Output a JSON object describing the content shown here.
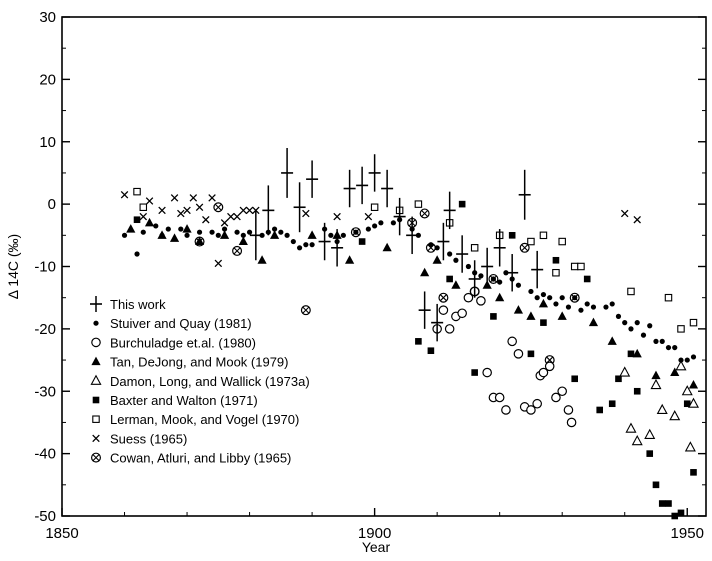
{
  "chart_data": {
    "type": "scatter",
    "xlabel": "Year",
    "ylabel": "Δ 14C (‰)",
    "xlim": [
      1850,
      1953
    ],
    "ylim": [
      -50,
      30
    ],
    "xticks": [
      1850,
      1900,
      1950
    ],
    "xtick_labels": [
      "1850",
      "1900",
      "1950"
    ],
    "yticks": [
      -50,
      -40,
      -30,
      -20,
      -10,
      0,
      10,
      20,
      30
    ],
    "ytick_labels": [
      "-50",
      "-40",
      "-30",
      "-20",
      "-10",
      "0",
      "10",
      "20",
      "30"
    ],
    "grid": false,
    "legend_position": "bottom-left",
    "series": [
      {
        "name": "This work",
        "marker": "cross-errorbar",
        "points": [
          {
            "x": 1881,
            "y": -5,
            "err": 4
          },
          {
            "x": 1883,
            "y": -1,
            "err": 4
          },
          {
            "x": 1886,
            "y": 5,
            "err": 4
          },
          {
            "x": 1888,
            "y": -0.5,
            "err": 4
          },
          {
            "x": 1890,
            "y": 4,
            "err": 3
          },
          {
            "x": 1892,
            "y": -6,
            "err": 3
          },
          {
            "x": 1894,
            "y": -7,
            "err": 3
          },
          {
            "x": 1896,
            "y": 2.5,
            "err": 3
          },
          {
            "x": 1898,
            "y": 3,
            "err": 3
          },
          {
            "x": 1900,
            "y": 5,
            "err": 3
          },
          {
            "x": 1902,
            "y": 2.5,
            "err": 3
          },
          {
            "x": 1904,
            "y": -2,
            "err": 3
          },
          {
            "x": 1906,
            "y": -5,
            "err": 3
          },
          {
            "x": 1908,
            "y": -17,
            "err": 3
          },
          {
            "x": 1910,
            "y": -19,
            "err": 3
          },
          {
            "x": 1911,
            "y": -6,
            "err": 3
          },
          {
            "x": 1912,
            "y": -1,
            "err": 3
          },
          {
            "x": 1914,
            "y": -8,
            "err": 3
          },
          {
            "x": 1916,
            "y": -12,
            "err": 3
          },
          {
            "x": 1918,
            "y": -10,
            "err": 3
          },
          {
            "x": 1920,
            "y": -7,
            "err": 3
          },
          {
            "x": 1922,
            "y": -11,
            "err": 3
          },
          {
            "x": 1924,
            "y": 1.5,
            "err": 4
          },
          {
            "x": 1926,
            "y": -10.5,
            "err": 3
          }
        ]
      },
      {
        "name": "Stuiver and Quay (1981)",
        "marker": "filled-dot",
        "points": [
          {
            "x": 1860,
            "y": -5
          },
          {
            "x": 1862,
            "y": -8
          },
          {
            "x": 1863,
            "y": -4.5
          },
          {
            "x": 1865,
            "y": -3.5
          },
          {
            "x": 1866,
            "y": -5
          },
          {
            "x": 1867,
            "y": -4
          },
          {
            "x": 1869,
            "y": -4
          },
          {
            "x": 1870,
            "y": -5
          },
          {
            "x": 1872,
            "y": -4.5
          },
          {
            "x": 1874,
            "y": -4.5
          },
          {
            "x": 1875,
            "y": -5
          },
          {
            "x": 1876,
            "y": -4
          },
          {
            "x": 1878,
            "y": -4.5
          },
          {
            "x": 1879,
            "y": -5
          },
          {
            "x": 1880,
            "y": -4.5
          },
          {
            "x": 1882,
            "y": -5
          },
          {
            "x": 1883,
            "y": -4.5
          },
          {
            "x": 1884,
            "y": -4
          },
          {
            "x": 1885,
            "y": -4.5
          },
          {
            "x": 1886,
            "y": -5
          },
          {
            "x": 1887,
            "y": -6
          },
          {
            "x": 1888,
            "y": -7
          },
          {
            "x": 1889,
            "y": -6.5
          },
          {
            "x": 1890,
            "y": -6.5
          },
          {
            "x": 1892,
            "y": -4
          },
          {
            "x": 1893,
            "y": -5
          },
          {
            "x": 1894,
            "y": -6
          },
          {
            "x": 1895,
            "y": -5
          },
          {
            "x": 1897,
            "y": -4.5
          },
          {
            "x": 1899,
            "y": -4
          },
          {
            "x": 1900,
            "y": -3.5
          },
          {
            "x": 1901,
            "y": -3
          },
          {
            "x": 1903,
            "y": -3
          },
          {
            "x": 1904,
            "y": -2.5
          },
          {
            "x": 1906,
            "y": -4
          },
          {
            "x": 1907,
            "y": -5
          },
          {
            "x": 1909,
            "y": -6.5
          },
          {
            "x": 1910,
            "y": -7
          },
          {
            "x": 1912,
            "y": -8
          },
          {
            "x": 1913,
            "y": -9
          },
          {
            "x": 1915,
            "y": -10
          },
          {
            "x": 1916,
            "y": -11
          },
          {
            "x": 1917,
            "y": -11.5
          },
          {
            "x": 1919,
            "y": -12
          },
          {
            "x": 1920,
            "y": -12.5
          },
          {
            "x": 1921,
            "y": -11
          },
          {
            "x": 1922,
            "y": -12
          },
          {
            "x": 1923,
            "y": -13
          },
          {
            "x": 1925,
            "y": -14
          },
          {
            "x": 1926,
            "y": -15
          },
          {
            "x": 1927,
            "y": -14.5
          },
          {
            "x": 1928,
            "y": -15
          },
          {
            "x": 1929,
            "y": -16
          },
          {
            "x": 1930,
            "y": -15
          },
          {
            "x": 1931,
            "y": -16.5
          },
          {
            "x": 1932,
            "y": -15
          },
          {
            "x": 1933,
            "y": -17
          },
          {
            "x": 1934,
            "y": -16
          },
          {
            "x": 1935,
            "y": -16.5
          },
          {
            "x": 1937,
            "y": -16.5
          },
          {
            "x": 1938,
            "y": -16
          },
          {
            "x": 1939,
            "y": -18
          },
          {
            "x": 1940,
            "y": -19
          },
          {
            "x": 1941,
            "y": -20
          },
          {
            "x": 1942,
            "y": -19
          },
          {
            "x": 1943,
            "y": -21
          },
          {
            "x": 1944,
            "y": -19.5
          },
          {
            "x": 1945,
            "y": -22
          },
          {
            "x": 1946,
            "y": -22
          },
          {
            "x": 1947,
            "y": -23
          },
          {
            "x": 1948,
            "y": -23
          },
          {
            "x": 1949,
            "y": -25
          },
          {
            "x": 1950,
            "y": -25
          },
          {
            "x": 1951,
            "y": -24.5
          }
        ]
      },
      {
        "name": "Burchuladge et.al. (1980)",
        "marker": "open-circle",
        "points": [
          {
            "x": 1910,
            "y": -20
          },
          {
            "x": 1911,
            "y": -17
          },
          {
            "x": 1912,
            "y": -20
          },
          {
            "x": 1913,
            "y": -18
          },
          {
            "x": 1914,
            "y": -17.5
          },
          {
            "x": 1915,
            "y": -15
          },
          {
            "x": 1916,
            "y": -14
          },
          {
            "x": 1917,
            "y": -15.5
          },
          {
            "x": 1918,
            "y": -27
          },
          {
            "x": 1919,
            "y": -31
          },
          {
            "x": 1920,
            "y": -31
          },
          {
            "x": 1921,
            "y": -33
          },
          {
            "x": 1922,
            "y": -22
          },
          {
            "x": 1923,
            "y": -24
          },
          {
            "x": 1924,
            "y": -32.5
          },
          {
            "x": 1925,
            "y": -33
          },
          {
            "x": 1926,
            "y": -32
          },
          {
            "x": 1926.5,
            "y": -27.5
          },
          {
            "x": 1927,
            "y": -27
          },
          {
            "x": 1928,
            "y": -26
          },
          {
            "x": 1929,
            "y": -31
          },
          {
            "x": 1930,
            "y": -30
          },
          {
            "x": 1931,
            "y": -33
          },
          {
            "x": 1931.5,
            "y": -35
          }
        ]
      },
      {
        "name": "Tan, DeJong, and Mook (1979)",
        "marker": "filled-triangle",
        "points": [
          {
            "x": 1861,
            "y": -4
          },
          {
            "x": 1864,
            "y": -3
          },
          {
            "x": 1866,
            "y": -5
          },
          {
            "x": 1868,
            "y": -5.5
          },
          {
            "x": 1870,
            "y": -4
          },
          {
            "x": 1872,
            "y": -6
          },
          {
            "x": 1876,
            "y": -5
          },
          {
            "x": 1879,
            "y": -6
          },
          {
            "x": 1882,
            "y": -9
          },
          {
            "x": 1884,
            "y": -5
          },
          {
            "x": 1890,
            "y": -5
          },
          {
            "x": 1894,
            "y": -5
          },
          {
            "x": 1896,
            "y": -9
          },
          {
            "x": 1902,
            "y": -7
          },
          {
            "x": 1908,
            "y": -11
          },
          {
            "x": 1910,
            "y": -9
          },
          {
            "x": 1913,
            "y": -13
          },
          {
            "x": 1918,
            "y": -13
          },
          {
            "x": 1920,
            "y": -15
          },
          {
            "x": 1923,
            "y": -17
          },
          {
            "x": 1925,
            "y": -18
          },
          {
            "x": 1927,
            "y": -16
          },
          {
            "x": 1930,
            "y": -18
          },
          {
            "x": 1935,
            "y": -19
          },
          {
            "x": 1938,
            "y": -22
          },
          {
            "x": 1942,
            "y": -24
          },
          {
            "x": 1945,
            "y": -27.5
          },
          {
            "x": 1948,
            "y": -27
          },
          {
            "x": 1951,
            "y": -29
          }
        ]
      },
      {
        "name": "Damon, Long, and Wallick (1973a)",
        "marker": "open-triangle",
        "points": [
          {
            "x": 1940,
            "y": -27
          },
          {
            "x": 1941,
            "y": -36
          },
          {
            "x": 1942,
            "y": -38
          },
          {
            "x": 1944,
            "y": -37
          },
          {
            "x": 1945,
            "y": -29
          },
          {
            "x": 1946,
            "y": -33
          },
          {
            "x": 1948,
            "y": -34
          },
          {
            "x": 1949,
            "y": -26
          },
          {
            "x": 1950,
            "y": -30
          },
          {
            "x": 1950.5,
            "y": -39
          },
          {
            "x": 1951,
            "y": -32
          }
        ]
      },
      {
        "name": "Baxter and Walton (1971)",
        "marker": "filled-square",
        "points": [
          {
            "x": 1862,
            "y": -2.5
          },
          {
            "x": 1898,
            "y": -6
          },
          {
            "x": 1907,
            "y": -22
          },
          {
            "x": 1909,
            "y": -23.5
          },
          {
            "x": 1912,
            "y": -12
          },
          {
            "x": 1914,
            "y": 0
          },
          {
            "x": 1916,
            "y": -27
          },
          {
            "x": 1919,
            "y": -18
          },
          {
            "x": 1922,
            "y": -5
          },
          {
            "x": 1925,
            "y": -24
          },
          {
            "x": 1927,
            "y": -19
          },
          {
            "x": 1929,
            "y": -9
          },
          {
            "x": 1932,
            "y": -28
          },
          {
            "x": 1934,
            "y": -12
          },
          {
            "x": 1936,
            "y": -33
          },
          {
            "x": 1938,
            "y": -32
          },
          {
            "x": 1939,
            "y": -28
          },
          {
            "x": 1941,
            "y": -24
          },
          {
            "x": 1942,
            "y": -30
          },
          {
            "x": 1944,
            "y": -40
          },
          {
            "x": 1945,
            "y": -45
          },
          {
            "x": 1946,
            "y": -48
          },
          {
            "x": 1947,
            "y": -48
          },
          {
            "x": 1948,
            "y": -50
          },
          {
            "x": 1949,
            "y": -49.5
          },
          {
            "x": 1950,
            "y": -32
          },
          {
            "x": 1951,
            "y": -43
          }
        ]
      },
      {
        "name": "Lerman, Mook, and Vogel (1970)",
        "marker": "open-square",
        "points": [
          {
            "x": 1862,
            "y": 2
          },
          {
            "x": 1863,
            "y": -0.5
          },
          {
            "x": 1900,
            "y": -0.5
          },
          {
            "x": 1904,
            "y": -1
          },
          {
            "x": 1907,
            "y": 0
          },
          {
            "x": 1912,
            "y": -3
          },
          {
            "x": 1916,
            "y": -7
          },
          {
            "x": 1920,
            "y": -5
          },
          {
            "x": 1925,
            "y": -6
          },
          {
            "x": 1927,
            "y": -5
          },
          {
            "x": 1929,
            "y": -11
          },
          {
            "x": 1930,
            "y": -6
          },
          {
            "x": 1932,
            "y": -10
          },
          {
            "x": 1933,
            "y": -10
          },
          {
            "x": 1941,
            "y": -14
          },
          {
            "x": 1947,
            "y": -15
          },
          {
            "x": 1949,
            "y": -20
          },
          {
            "x": 1951,
            "y": -19
          }
        ]
      },
      {
        "name": "Suess (1965)",
        "marker": "cross",
        "points": [
          {
            "x": 1860,
            "y": 1.5
          },
          {
            "x": 1863,
            "y": -2
          },
          {
            "x": 1864,
            "y": 0.5
          },
          {
            "x": 1866,
            "y": -1
          },
          {
            "x": 1868,
            "y": 1
          },
          {
            "x": 1869,
            "y": -1.5
          },
          {
            "x": 1870,
            "y": -1
          },
          {
            "x": 1871,
            "y": 1
          },
          {
            "x": 1872,
            "y": -0.5
          },
          {
            "x": 1873,
            "y": -2.5
          },
          {
            "x": 1874,
            "y": 1
          },
          {
            "x": 1875,
            "y": -9.5
          },
          {
            "x": 1876,
            "y": -3
          },
          {
            "x": 1877,
            "y": -2
          },
          {
            "x": 1878,
            "y": -2
          },
          {
            "x": 1879,
            "y": -1
          },
          {
            "x": 1880,
            "y": -1
          },
          {
            "x": 1881,
            "y": -1
          },
          {
            "x": 1889,
            "y": -1.5
          },
          {
            "x": 1894,
            "y": -2
          },
          {
            "x": 1899,
            "y": -2
          },
          {
            "x": 1940,
            "y": -1.5
          },
          {
            "x": 1942,
            "y": -2.5
          }
        ]
      },
      {
        "name": "Cowan, Atluri, and Libby (1965)",
        "marker": "circle-x",
        "points": [
          {
            "x": 1872,
            "y": -6
          },
          {
            "x": 1875,
            "y": -0.5
          },
          {
            "x": 1878,
            "y": -7.5
          },
          {
            "x": 1889,
            "y": -17
          },
          {
            "x": 1897,
            "y": -4.5
          },
          {
            "x": 1906,
            "y": -3
          },
          {
            "x": 1908,
            "y": -1.5
          },
          {
            "x": 1909,
            "y": -7
          },
          {
            "x": 1911,
            "y": -15
          },
          {
            "x": 1916,
            "y": -14
          },
          {
            "x": 1919,
            "y": -12
          },
          {
            "x": 1924,
            "y": -7
          },
          {
            "x": 1928,
            "y": -25
          },
          {
            "x": 1932,
            "y": -15
          }
        ]
      }
    ]
  }
}
